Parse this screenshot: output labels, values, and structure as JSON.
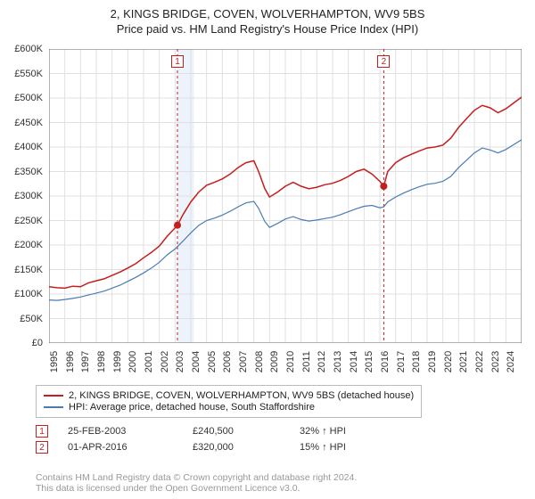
{
  "title": {
    "line1": "2, KINGS BRIDGE, COVEN, WOLVERHAMPTON, WV9 5BS",
    "line2": "Price paid vs. HM Land Registry's House Price Index (HPI)"
  },
  "chart": {
    "type": "line",
    "background_color": "#ffffff",
    "band1_color": "#eaf1fa",
    "band2_color": "#eaf1fa",
    "grid_color": "#e0e0e0",
    "axis_color": "#666666",
    "marker_line_color": "#c41e1e",
    "marker_dot_color": "#c41e1e",
    "xlim": [
      1995,
      2025
    ],
    "ylim": [
      0,
      600000
    ],
    "ytick_step": 50000,
    "y_ticks": [
      "£0",
      "£50K",
      "£100K",
      "£150K",
      "£200K",
      "£250K",
      "£300K",
      "£350K",
      "£400K",
      "£450K",
      "£500K",
      "£550K",
      "£600K"
    ],
    "x_ticks": [
      1995,
      1996,
      1997,
      1998,
      1999,
      2000,
      2001,
      2002,
      2003,
      2004,
      2005,
      2006,
      2007,
      2008,
      2009,
      2010,
      2011,
      2012,
      2013,
      2014,
      2015,
      2016,
      2017,
      2018,
      2019,
      2020,
      2021,
      2022,
      2023,
      2024
    ],
    "marker_lines": [
      {
        "id": "1",
        "x": 2003.15
      },
      {
        "id": "2",
        "x": 2016.25
      }
    ],
    "marker_points": [
      {
        "x": 2003.15,
        "y": 240500
      },
      {
        "x": 2016.25,
        "y": 320000
      }
    ],
    "series": [
      {
        "name": "price_paid",
        "color": "#c41e1e",
        "width": 1.5,
        "points": [
          [
            1995.0,
            115000
          ],
          [
            1995.5,
            113000
          ],
          [
            1996.0,
            112000
          ],
          [
            1996.5,
            116000
          ],
          [
            1997.0,
            115000
          ],
          [
            1997.5,
            123000
          ],
          [
            1998.0,
            127000
          ],
          [
            1998.5,
            131000
          ],
          [
            1999.0,
            138000
          ],
          [
            1999.5,
            145000
          ],
          [
            2000.0,
            153000
          ],
          [
            2000.5,
            162000
          ],
          [
            2001.0,
            174000
          ],
          [
            2001.5,
            185000
          ],
          [
            2002.0,
            198000
          ],
          [
            2002.5,
            218000
          ],
          [
            2003.0,
            235000
          ],
          [
            2003.15,
            240500
          ],
          [
            2003.5,
            262000
          ],
          [
            2004.0,
            288000
          ],
          [
            2004.5,
            308000
          ],
          [
            2005.0,
            322000
          ],
          [
            2005.5,
            328000
          ],
          [
            2006.0,
            335000
          ],
          [
            2006.5,
            345000
          ],
          [
            2007.0,
            358000
          ],
          [
            2007.5,
            368000
          ],
          [
            2008.0,
            372000
          ],
          [
            2008.3,
            350000
          ],
          [
            2008.7,
            315000
          ],
          [
            2009.0,
            298000
          ],
          [
            2009.5,
            308000
          ],
          [
            2010.0,
            320000
          ],
          [
            2010.5,
            328000
          ],
          [
            2011.0,
            320000
          ],
          [
            2011.5,
            315000
          ],
          [
            2012.0,
            318000
          ],
          [
            2012.5,
            323000
          ],
          [
            2013.0,
            326000
          ],
          [
            2013.5,
            332000
          ],
          [
            2014.0,
            340000
          ],
          [
            2014.5,
            350000
          ],
          [
            2015.0,
            355000
          ],
          [
            2015.5,
            345000
          ],
          [
            2016.0,
            330000
          ],
          [
            2016.25,
            320000
          ],
          [
            2016.5,
            350000
          ],
          [
            2017.0,
            368000
          ],
          [
            2017.5,
            378000
          ],
          [
            2018.0,
            385000
          ],
          [
            2018.5,
            392000
          ],
          [
            2019.0,
            398000
          ],
          [
            2019.5,
            400000
          ],
          [
            2020.0,
            404000
          ],
          [
            2020.5,
            418000
          ],
          [
            2021.0,
            440000
          ],
          [
            2021.5,
            458000
          ],
          [
            2022.0,
            475000
          ],
          [
            2022.5,
            485000
          ],
          [
            2023.0,
            480000
          ],
          [
            2023.5,
            470000
          ],
          [
            2024.0,
            478000
          ],
          [
            2024.5,
            490000
          ],
          [
            2025.0,
            502000
          ]
        ]
      },
      {
        "name": "hpi",
        "color": "#4a7bb5",
        "width": 1.2,
        "points": [
          [
            1995.0,
            88000
          ],
          [
            1995.5,
            87000
          ],
          [
            1996.0,
            89000
          ],
          [
            1996.5,
            91000
          ],
          [
            1997.0,
            94000
          ],
          [
            1997.5,
            98000
          ],
          [
            1998.0,
            102000
          ],
          [
            1998.5,
            106000
          ],
          [
            1999.0,
            112000
          ],
          [
            1999.5,
            118000
          ],
          [
            2000.0,
            126000
          ],
          [
            2000.5,
            134000
          ],
          [
            2001.0,
            143000
          ],
          [
            2001.5,
            153000
          ],
          [
            2002.0,
            165000
          ],
          [
            2002.5,
            180000
          ],
          [
            2003.0,
            192000
          ],
          [
            2003.5,
            208000
          ],
          [
            2004.0,
            225000
          ],
          [
            2004.5,
            240000
          ],
          [
            2005.0,
            250000
          ],
          [
            2005.5,
            255000
          ],
          [
            2006.0,
            261000
          ],
          [
            2006.5,
            269000
          ],
          [
            2007.0,
            278000
          ],
          [
            2007.5,
            286000
          ],
          [
            2008.0,
            289000
          ],
          [
            2008.3,
            275000
          ],
          [
            2008.7,
            248000
          ],
          [
            2009.0,
            236000
          ],
          [
            2009.5,
            244000
          ],
          [
            2010.0,
            253000
          ],
          [
            2010.5,
            258000
          ],
          [
            2011.0,
            252000
          ],
          [
            2011.5,
            249000
          ],
          [
            2012.0,
            251000
          ],
          [
            2012.5,
            254000
          ],
          [
            2013.0,
            257000
          ],
          [
            2013.5,
            262000
          ],
          [
            2014.0,
            268000
          ],
          [
            2014.5,
            274000
          ],
          [
            2015.0,
            279000
          ],
          [
            2015.5,
            281000
          ],
          [
            2016.0,
            276000
          ],
          [
            2016.25,
            278000
          ],
          [
            2016.5,
            288000
          ],
          [
            2017.0,
            298000
          ],
          [
            2017.5,
            306000
          ],
          [
            2018.0,
            313000
          ],
          [
            2018.5,
            319000
          ],
          [
            2019.0,
            324000
          ],
          [
            2019.5,
            326000
          ],
          [
            2020.0,
            330000
          ],
          [
            2020.5,
            340000
          ],
          [
            2021.0,
            358000
          ],
          [
            2021.5,
            373000
          ],
          [
            2022.0,
            388000
          ],
          [
            2022.5,
            398000
          ],
          [
            2023.0,
            394000
          ],
          [
            2023.5,
            388000
          ],
          [
            2024.0,
            395000
          ],
          [
            2024.5,
            405000
          ],
          [
            2025.0,
            415000
          ]
        ]
      }
    ]
  },
  "legend": {
    "items": [
      {
        "color": "#c41e1e",
        "label": "2, KINGS BRIDGE, COVEN, WOLVERHAMPTON, WV9 5BS (detached house)"
      },
      {
        "color": "#4a7bb5",
        "label": "HPI: Average price, detached house, South Staffordshire"
      }
    ]
  },
  "sales": [
    {
      "id": "1",
      "date": "25-FEB-2003",
      "price": "£240,500",
      "hpi_diff": "32% ↑ HPI"
    },
    {
      "id": "2",
      "date": "01-APR-2016",
      "price": "£320,000",
      "hpi_diff": "15% ↑ HPI"
    }
  ],
  "copyright": {
    "line1": "Contains HM Land Registry data © Crown copyright and database right 2024.",
    "line2": "This data is licensed under the Open Government Licence v3.0."
  }
}
